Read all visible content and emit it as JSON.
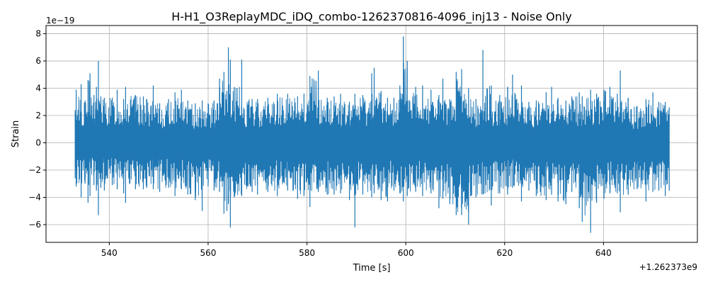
{
  "chart_data": {
    "type": "line",
    "title": "H-H1_O3ReplayMDC_iDQ_combo-1262370816-4096_inj13 - Noise Only",
    "xlabel": "Time [s]",
    "ylabel": "Strain",
    "x_offset_label": "+1.262373e9",
    "y_scale_label": "1e−19",
    "xlim": [
      527.2,
      659.0
    ],
    "ylim": [
      -7.3,
      8.6
    ],
    "x_ticks": [
      540,
      560,
      580,
      600,
      620,
      640
    ],
    "x_tick_labels": [
      "540",
      "560",
      "580",
      "600",
      "620",
      "640"
    ],
    "y_ticks": [
      -6,
      -4,
      -2,
      0,
      2,
      4,
      6,
      8
    ],
    "y_tick_labels": [
      "−6",
      "−4",
      "−2",
      "0",
      "2",
      "4",
      "6",
      "8"
    ],
    "grid": true,
    "series": [
      {
        "color": "#1f77b4",
        "x": [
          533.1,
          533.3,
          534.3,
          535.1,
          535.7,
          536.1,
          536.9,
          537.4,
          537.8,
          538.3,
          539.0,
          540.6,
          541.6,
          542.9,
          543.3,
          545.3,
          546.9,
          547.6,
          548.9,
          550.2,
          552.0,
          553.3,
          554.6,
          555.9,
          557.4,
          558.8,
          560.0,
          561.2,
          562.3,
          563.2,
          563.8,
          564.1,
          564.5,
          565.3,
          566.8,
          568.9,
          570.0,
          572.1,
          574.0,
          576.1,
          578.1,
          579.4,
          580.6,
          582.3,
          584.1,
          585.5,
          586.8,
          588.6,
          589.7,
          591.3,
          593.1,
          593.6,
          595.0,
          596.3,
          597.6,
          598.8,
          599.5,
          600.3,
          602.0,
          603.4,
          605.1,
          606.7,
          607.5,
          608.9,
          610.2,
          611.3,
          612.7,
          614.2,
          615.6,
          617.3,
          619.0,
          620.6,
          621.6,
          623.4,
          624.9,
          626.4,
          628.4,
          629.5,
          630.8,
          632.4,
          633.6,
          635.1,
          635.7,
          637.4,
          638.6,
          640.1,
          641.3,
          642.8,
          643.4,
          645.0,
          646.8,
          648.6,
          650.0,
          651.2,
          652.5,
          653.3
        ],
        "upper": [
          2.4,
          3.9,
          4.3,
          3.1,
          4.6,
          5.1,
          3.5,
          4.1,
          6.0,
          3.4,
          3.3,
          3.3,
          3.9,
          3.2,
          4.1,
          3.5,
          3.4,
          3.2,
          4.2,
          2.9,
          3.2,
          3.7,
          3.9,
          3.1,
          2.9,
          3.1,
          2.9,
          3.1,
          4.7,
          5.2,
          3.8,
          7.0,
          6.1,
          4.1,
          6.1,
          3.2,
          3.2,
          3.3,
          3.6,
          3.6,
          3.4,
          3.6,
          4.9,
          5.3,
          3.3,
          3.4,
          3.6,
          3.0,
          3.6,
          3.5,
          5.1,
          5.5,
          3.8,
          3.3,
          3.3,
          4.2,
          7.8,
          6.0,
          4.1,
          4.2,
          3.9,
          3.5,
          4.7,
          3.2,
          5.2,
          5.4,
          4.0,
          3.2,
          6.8,
          4.2,
          3.5,
          4.1,
          5.0,
          4.2,
          3.0,
          3.1,
          3.7,
          4.1,
          3.3,
          3.1,
          3.4,
          3.7,
          3.4,
          3.9,
          3.6,
          3.9,
          4.1,
          3.6,
          5.3,
          3.3,
          2.7,
          3.2,
          3.7,
          3.0,
          3.0,
          2.6
        ],
        "lower": [
          -2.6,
          -3.2,
          -4.0,
          -3.0,
          -4.4,
          -3.9,
          -3.1,
          -3.5,
          -5.3,
          -3.3,
          -3.5,
          -3.1,
          -3.4,
          -3.7,
          -4.4,
          -3.4,
          -3.4,
          -3.3,
          -3.4,
          -3.6,
          -3.3,
          -3.9,
          -3.4,
          -3.8,
          -4.2,
          -5.0,
          -3.2,
          -3.5,
          -3.6,
          -5.2,
          -5.0,
          -4.5,
          -6.2,
          -4.0,
          -3.9,
          -3.6,
          -3.8,
          -3.6,
          -3.9,
          -3.5,
          -4.1,
          -3.9,
          -4.7,
          -3.6,
          -3.8,
          -3.8,
          -3.7,
          -4.2,
          -6.2,
          -3.8,
          -4.0,
          -3.7,
          -4.2,
          -4.3,
          -3.5,
          -3.7,
          -4.3,
          -3.9,
          -3.6,
          -3.9,
          -3.7,
          -4.8,
          -4.1,
          -4.5,
          -5.3,
          -5.3,
          -6.0,
          -4.0,
          -3.8,
          -4.6,
          -3.7,
          -3.8,
          -3.3,
          -4.3,
          -3.5,
          -3.9,
          -4.2,
          -3.8,
          -4.3,
          -4.5,
          -3.6,
          -4.8,
          -5.8,
          -6.6,
          -4.4,
          -4.1,
          -3.7,
          -3.7,
          -5.1,
          -3.8,
          -3.4,
          -4.3,
          -3.6,
          -3.5,
          -3.9,
          -3.5
        ]
      }
    ]
  }
}
